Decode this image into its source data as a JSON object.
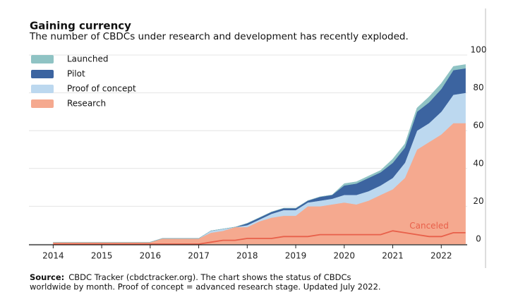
{
  "chart_data": {
    "type": "stacked_area",
    "title": "Gaining currency",
    "subtitle": "The number of CBDCs under research and development has recently exploded.",
    "x": [
      2014,
      2014.25,
      2014.5,
      2014.75,
      2015,
      2015.25,
      2015.5,
      2015.75,
      2016,
      2016.25,
      2016.5,
      2016.75,
      2017,
      2017.25,
      2017.5,
      2017.75,
      2018,
      2018.25,
      2018.5,
      2018.75,
      2019,
      2019.25,
      2019.5,
      2019.75,
      2020,
      2020.25,
      2020.5,
      2020.75,
      2021,
      2021.25,
      2021.5,
      2021.75,
      2022,
      2022.25,
      2022.5
    ],
    "series": [
      {
        "name": "Launched",
        "color": "#8fc3c4",
        "values": [
          0,
          0,
          0,
          0,
          0,
          0,
          0,
          0,
          0,
          0,
          0,
          0,
          0,
          0,
          0,
          0,
          0,
          0,
          0,
          0,
          0,
          0,
          0,
          0,
          1,
          1,
          1,
          1,
          2,
          2,
          2,
          3,
          3,
          2,
          2
        ]
      },
      {
        "name": "Pilot",
        "color": "#3c64a0",
        "values": [
          0,
          0,
          0,
          0,
          0,
          0,
          0,
          0,
          0,
          0,
          0,
          0,
          0,
          0,
          0,
          0,
          1,
          1,
          1,
          1,
          1,
          1,
          2,
          2,
          5,
          6,
          7,
          7,
          8,
          8,
          10,
          11,
          12,
          13,
          13
        ]
      },
      {
        "name": "Proof of concept",
        "color": "#bcd8ef",
        "values": [
          0,
          0,
          0,
          0,
          0,
          0,
          0,
          0,
          0,
          0,
          0,
          0,
          0,
          1,
          1,
          0,
          1,
          1,
          2,
          3,
          3,
          2,
          3,
          3,
          4,
          5,
          5,
          5,
          6,
          8,
          10,
          10,
          12,
          15,
          16
        ]
      },
      {
        "name": "Research",
        "color": "#f5a98f",
        "values": [
          1,
          1,
          1,
          1,
          1,
          1,
          1,
          1,
          1,
          3,
          3,
          3,
          3,
          6,
          7,
          9,
          9,
          12,
          14,
          15,
          15,
          20,
          20,
          21,
          22,
          21,
          23,
          26,
          29,
          35,
          50,
          54,
          58,
          64,
          64
        ]
      }
    ],
    "canceled": {
      "name": "Canceled",
      "color": "#e8604a",
      "values": [
        0,
        0,
        0,
        0,
        0,
        0,
        0,
        0,
        0,
        0,
        0,
        0,
        0,
        1,
        2,
        2,
        3,
        3,
        3,
        4,
        4,
        4,
        5,
        5,
        5,
        5,
        5,
        5,
        7,
        6,
        5,
        4,
        4,
        6,
        6
      ]
    },
    "xlim": [
      2013.5,
      2023
    ],
    "xticks": [
      2014,
      2015,
      2016,
      2017,
      2018,
      2019,
      2020,
      2021,
      2022
    ],
    "ylim": [
      0,
      100
    ],
    "yticks": [
      0,
      20,
      40,
      60,
      80,
      100
    ],
    "grid": true,
    "source": {
      "label": "Source:",
      "lines": [
        "CBDC Tracker (cbdctracker.org). The chart shows the status of CBDCs",
        "worldwide by month. Proof of concept = advanced research stage. Updated July 2022."
      ]
    }
  }
}
